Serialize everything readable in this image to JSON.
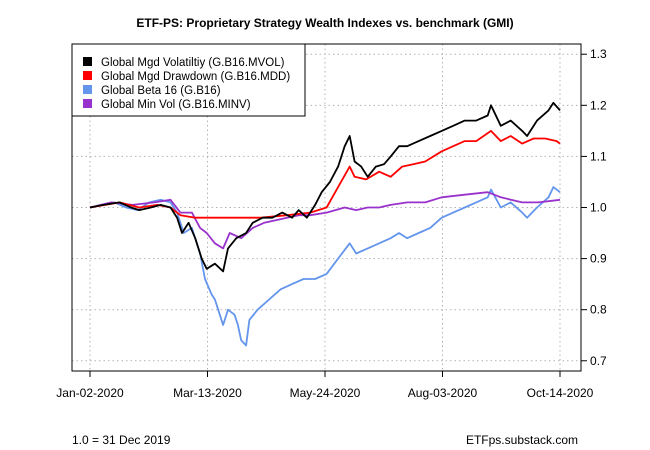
{
  "chart_data": {
    "type": "line",
    "title": "ETF-PS: Proprietary Strategy Wealth Indexes vs. benchmark (GMI)",
    "x_ticks": [
      "Jan-02-2020",
      "Mar-13-2020",
      "May-24-2020",
      "Aug-03-2020",
      "Oct-14-2020"
    ],
    "xlim": [
      "2020-01-02",
      "2020-10-14"
    ],
    "ylim": [
      0.68,
      1.32
    ],
    "y_ticks": [
      0.7,
      0.8,
      0.9,
      1.0,
      1.1,
      1.2,
      1.3
    ],
    "y_axis_side": "right",
    "grid": true,
    "legend_position": "top-left",
    "series": [
      {
        "name": "Global Mgd Volatiltiy (G.B16.MVOL)",
        "color": "#000000",
        "points": [
          [
            "2020-01-02",
            1.0
          ],
          [
            "2020-01-10",
            1.005
          ],
          [
            "2020-01-20",
            1.01
          ],
          [
            "2020-01-27",
            1.0
          ],
          [
            "2020-02-01",
            0.995
          ],
          [
            "2020-02-08",
            1.0
          ],
          [
            "2020-02-14",
            1.005
          ],
          [
            "2020-02-20",
            1.0
          ],
          [
            "2020-02-24",
            0.98
          ],
          [
            "2020-02-27",
            0.95
          ],
          [
            "2020-03-02",
            0.97
          ],
          [
            "2020-03-06",
            0.94
          ],
          [
            "2020-03-10",
            0.9
          ],
          [
            "2020-03-13",
            0.88
          ],
          [
            "2020-03-18",
            0.89
          ],
          [
            "2020-03-23",
            0.875
          ],
          [
            "2020-03-26",
            0.92
          ],
          [
            "2020-03-31",
            0.94
          ],
          [
            "2020-04-06",
            0.95
          ],
          [
            "2020-04-10",
            0.97
          ],
          [
            "2020-04-16",
            0.98
          ],
          [
            "2020-04-22",
            0.98
          ],
          [
            "2020-04-28",
            0.99
          ],
          [
            "2020-05-04",
            0.98
          ],
          [
            "2020-05-08",
            0.995
          ],
          [
            "2020-05-13",
            0.98
          ],
          [
            "2020-05-18",
            1.005
          ],
          [
            "2020-05-22",
            1.03
          ],
          [
            "2020-05-27",
            1.05
          ],
          [
            "2020-06-01",
            1.08
          ],
          [
            "2020-06-05",
            1.12
          ],
          [
            "2020-06-08",
            1.14
          ],
          [
            "2020-06-11",
            1.09
          ],
          [
            "2020-06-15",
            1.08
          ],
          [
            "2020-06-19",
            1.06
          ],
          [
            "2020-06-24",
            1.08
          ],
          [
            "2020-06-29",
            1.085
          ],
          [
            "2020-07-03",
            1.1
          ],
          [
            "2020-07-08",
            1.12
          ],
          [
            "2020-07-13",
            1.12
          ],
          [
            "2020-07-20",
            1.13
          ],
          [
            "2020-07-27",
            1.14
          ],
          [
            "2020-08-03",
            1.15
          ],
          [
            "2020-08-10",
            1.16
          ],
          [
            "2020-08-17",
            1.17
          ],
          [
            "2020-08-24",
            1.17
          ],
          [
            "2020-08-31",
            1.18
          ],
          [
            "2020-09-02",
            1.2
          ],
          [
            "2020-09-08",
            1.16
          ],
          [
            "2020-09-14",
            1.17
          ],
          [
            "2020-09-21",
            1.15
          ],
          [
            "2020-09-24",
            1.14
          ],
          [
            "2020-09-30",
            1.17
          ],
          [
            "2020-10-07",
            1.19
          ],
          [
            "2020-10-10",
            1.205
          ],
          [
            "2020-10-14",
            1.19
          ]
        ]
      },
      {
        "name": "Global Mgd Drawdown (G.B16.MDD)",
        "color": "#ff0000",
        "points": [
          [
            "2020-01-02",
            1.0
          ],
          [
            "2020-01-20",
            1.01
          ],
          [
            "2020-02-01",
            1.0
          ],
          [
            "2020-02-12",
            1.005
          ],
          [
            "2020-02-20",
            1.0
          ],
          [
            "2020-02-26",
            0.985
          ],
          [
            "2020-03-06",
            0.98
          ],
          [
            "2020-03-13",
            0.98
          ],
          [
            "2020-04-01",
            0.98
          ],
          [
            "2020-04-15",
            0.98
          ],
          [
            "2020-05-01",
            0.985
          ],
          [
            "2020-05-15",
            0.99
          ],
          [
            "2020-05-25",
            1.0
          ],
          [
            "2020-06-01",
            1.04
          ],
          [
            "2020-06-08",
            1.08
          ],
          [
            "2020-06-11",
            1.06
          ],
          [
            "2020-06-18",
            1.055
          ],
          [
            "2020-06-26",
            1.07
          ],
          [
            "2020-07-03",
            1.06
          ],
          [
            "2020-07-10",
            1.08
          ],
          [
            "2020-07-17",
            1.085
          ],
          [
            "2020-07-24",
            1.09
          ],
          [
            "2020-08-03",
            1.11
          ],
          [
            "2020-08-10",
            1.12
          ],
          [
            "2020-08-17",
            1.13
          ],
          [
            "2020-08-24",
            1.13
          ],
          [
            "2020-09-02",
            1.15
          ],
          [
            "2020-09-08",
            1.13
          ],
          [
            "2020-09-14",
            1.14
          ],
          [
            "2020-09-21",
            1.125
          ],
          [
            "2020-09-28",
            1.135
          ],
          [
            "2020-10-05",
            1.135
          ],
          [
            "2020-10-12",
            1.13
          ],
          [
            "2020-10-14",
            1.125
          ]
        ]
      },
      {
        "name": "Global Beta 16 (G.B16)",
        "color": "#6495ed",
        "points": [
          [
            "2020-01-02",
            1.0
          ],
          [
            "2020-01-10",
            1.005
          ],
          [
            "2020-01-17",
            1.01
          ],
          [
            "2020-01-24",
            1.0
          ],
          [
            "2020-01-31",
            0.995
          ],
          [
            "2020-02-07",
            1.01
          ],
          [
            "2020-02-14",
            1.015
          ],
          [
            "2020-02-20",
            1.01
          ],
          [
            "2020-02-24",
            0.99
          ],
          [
            "2020-02-28",
            0.95
          ],
          [
            "2020-03-04",
            0.96
          ],
          [
            "2020-03-09",
            0.91
          ],
          [
            "2020-03-12",
            0.86
          ],
          [
            "2020-03-16",
            0.83
          ],
          [
            "2020-03-18",
            0.82
          ],
          [
            "2020-03-20",
            0.8
          ],
          [
            "2020-03-23",
            0.77
          ],
          [
            "2020-03-26",
            0.8
          ],
          [
            "2020-03-30",
            0.79
          ],
          [
            "2020-04-01",
            0.77
          ],
          [
            "2020-04-03",
            0.74
          ],
          [
            "2020-04-06",
            0.73
          ],
          [
            "2020-04-08",
            0.78
          ],
          [
            "2020-04-13",
            0.8
          ],
          [
            "2020-04-20",
            0.82
          ],
          [
            "2020-04-27",
            0.84
          ],
          [
            "2020-05-04",
            0.85
          ],
          [
            "2020-05-11",
            0.86
          ],
          [
            "2020-05-18",
            0.86
          ],
          [
            "2020-05-25",
            0.87
          ],
          [
            "2020-06-01",
            0.9
          ],
          [
            "2020-06-08",
            0.93
          ],
          [
            "2020-06-12",
            0.91
          ],
          [
            "2020-06-19",
            0.92
          ],
          [
            "2020-06-26",
            0.93
          ],
          [
            "2020-07-03",
            0.94
          ],
          [
            "2020-07-08",
            0.95
          ],
          [
            "2020-07-13",
            0.94
          ],
          [
            "2020-07-20",
            0.95
          ],
          [
            "2020-07-27",
            0.96
          ],
          [
            "2020-08-03",
            0.98
          ],
          [
            "2020-08-10",
            0.99
          ],
          [
            "2020-08-17",
            1.0
          ],
          [
            "2020-08-24",
            1.01
          ],
          [
            "2020-08-31",
            1.02
          ],
          [
            "2020-09-02",
            1.035
          ],
          [
            "2020-09-08",
            1.0
          ],
          [
            "2020-09-14",
            1.01
          ],
          [
            "2020-09-21",
            0.99
          ],
          [
            "2020-09-24",
            0.98
          ],
          [
            "2020-09-30",
            1.0
          ],
          [
            "2020-10-07",
            1.02
          ],
          [
            "2020-10-10",
            1.04
          ],
          [
            "2020-10-14",
            1.03
          ]
        ]
      },
      {
        "name": "Global Min Vol (G.B16.MINV)",
        "color": "#9932cc",
        "points": [
          [
            "2020-01-02",
            1.0
          ],
          [
            "2020-01-15",
            1.01
          ],
          [
            "2020-01-28",
            1.005
          ],
          [
            "2020-02-10",
            1.01
          ],
          [
            "2020-02-20",
            1.015
          ],
          [
            "2020-02-26",
            0.99
          ],
          [
            "2020-03-04",
            0.99
          ],
          [
            "2020-03-09",
            0.96
          ],
          [
            "2020-03-13",
            0.95
          ],
          [
            "2020-03-18",
            0.93
          ],
          [
            "2020-03-23",
            0.92
          ],
          [
            "2020-03-27",
            0.95
          ],
          [
            "2020-04-03",
            0.94
          ],
          [
            "2020-04-10",
            0.96
          ],
          [
            "2020-04-17",
            0.97
          ],
          [
            "2020-04-24",
            0.975
          ],
          [
            "2020-05-01",
            0.98
          ],
          [
            "2020-05-08",
            0.985
          ],
          [
            "2020-05-15",
            0.985
          ],
          [
            "2020-05-25",
            0.99
          ],
          [
            "2020-06-05",
            1.0
          ],
          [
            "2020-06-12",
            0.995
          ],
          [
            "2020-06-19",
            1.0
          ],
          [
            "2020-06-26",
            1.0
          ],
          [
            "2020-07-03",
            1.005
          ],
          [
            "2020-07-13",
            1.01
          ],
          [
            "2020-07-24",
            1.01
          ],
          [
            "2020-08-03",
            1.02
          ],
          [
            "2020-08-17",
            1.025
          ],
          [
            "2020-08-31",
            1.03
          ],
          [
            "2020-09-08",
            1.02
          ],
          [
            "2020-09-21",
            1.01
          ],
          [
            "2020-10-01",
            1.01
          ],
          [
            "2020-10-14",
            1.015
          ]
        ]
      }
    ]
  },
  "footer": {
    "left_note": "1.0 = 31 Dec 2019",
    "right_note": "ETFps.substack.com"
  }
}
